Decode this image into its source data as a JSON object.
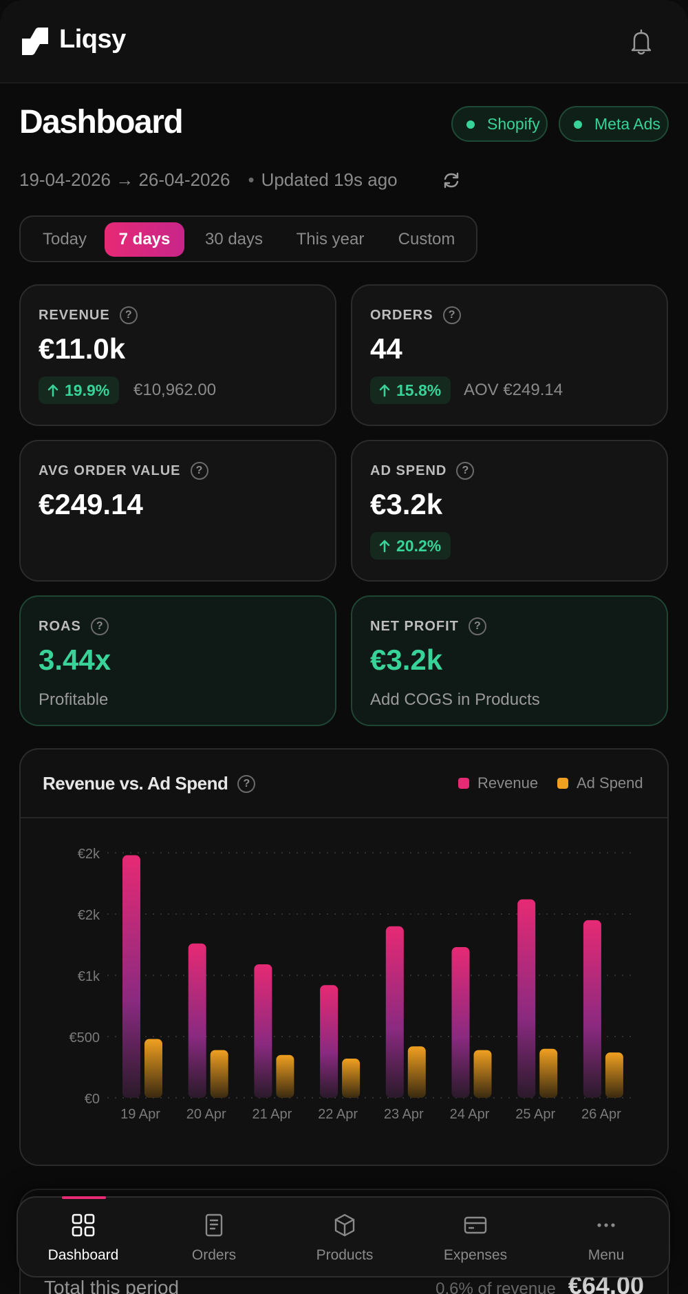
{
  "app": {
    "name": "Liqsy"
  },
  "header": {
    "title": "Dashboard"
  },
  "sources": [
    {
      "label": "Shopify",
      "status_color": "#37d399"
    },
    {
      "label": "Meta Ads",
      "status_color": "#37d399"
    }
  ],
  "date_range": {
    "label": "19-04-2026 → 26-04-2026",
    "updated": "Updated 19s ago"
  },
  "range_tabs": [
    {
      "label": "Today",
      "active": false
    },
    {
      "label": "7 days",
      "active": true
    },
    {
      "label": "30 days",
      "active": false
    },
    {
      "label": "This year",
      "active": false
    },
    {
      "label": "Custom",
      "active": false
    }
  ],
  "metrics": {
    "revenue": {
      "label": "REVENUE",
      "value": "€11.0k",
      "delta": "19.9%",
      "sub": "€10,962.00"
    },
    "orders": {
      "label": "ORDERS",
      "value": "44",
      "delta": "15.8%",
      "sub": "AOV €249.14"
    },
    "aov": {
      "label": "AVG ORDER VALUE",
      "value": "€249.14"
    },
    "ad_spend": {
      "label": "AD SPEND",
      "value": "€3.2k",
      "delta": "20.2%"
    },
    "roas": {
      "label": "ROAS",
      "value": "3.44x",
      "note": "Profitable"
    },
    "net_profit": {
      "label": "NET PROFIT",
      "value": "€3.2k",
      "note": "Add COGS in Products"
    }
  },
  "chart": {
    "title": "Revenue vs. Ad Spend"
  },
  "chart_data": {
    "type": "bar",
    "categories": [
      "19 Apr",
      "20 Apr",
      "21 Apr",
      "22 Apr",
      "23 Apr",
      "24 Apr",
      "25 Apr",
      "26 Apr"
    ],
    "series": [
      {
        "name": "Revenue",
        "color": "#e62a74",
        "values": [
          1980,
          1260,
          1090,
          920,
          1400,
          1230,
          1620,
          1450
        ]
      },
      {
        "name": "Ad Spend",
        "color": "#f0a020",
        "values": [
          480,
          390,
          350,
          320,
          420,
          390,
          400,
          370
        ]
      }
    ],
    "y_ticks": [
      "€0",
      "€500",
      "€1k",
      "€2k",
      "€2k"
    ],
    "ylim": [
      0,
      2000
    ],
    "grid": true,
    "legend": "top-right"
  },
  "next_section": {
    "left": "Total this period",
    "pct": "0.6% of revenue",
    "amount": "€64.00"
  },
  "nav": [
    {
      "label": "Dashboard",
      "icon": "grid-icon",
      "active": true
    },
    {
      "label": "Orders",
      "icon": "receipt-icon",
      "active": false
    },
    {
      "label": "Products",
      "icon": "box-icon",
      "active": false
    },
    {
      "label": "Expenses",
      "icon": "card-icon",
      "active": false
    },
    {
      "label": "Menu",
      "icon": "more-icon",
      "active": false
    }
  ]
}
